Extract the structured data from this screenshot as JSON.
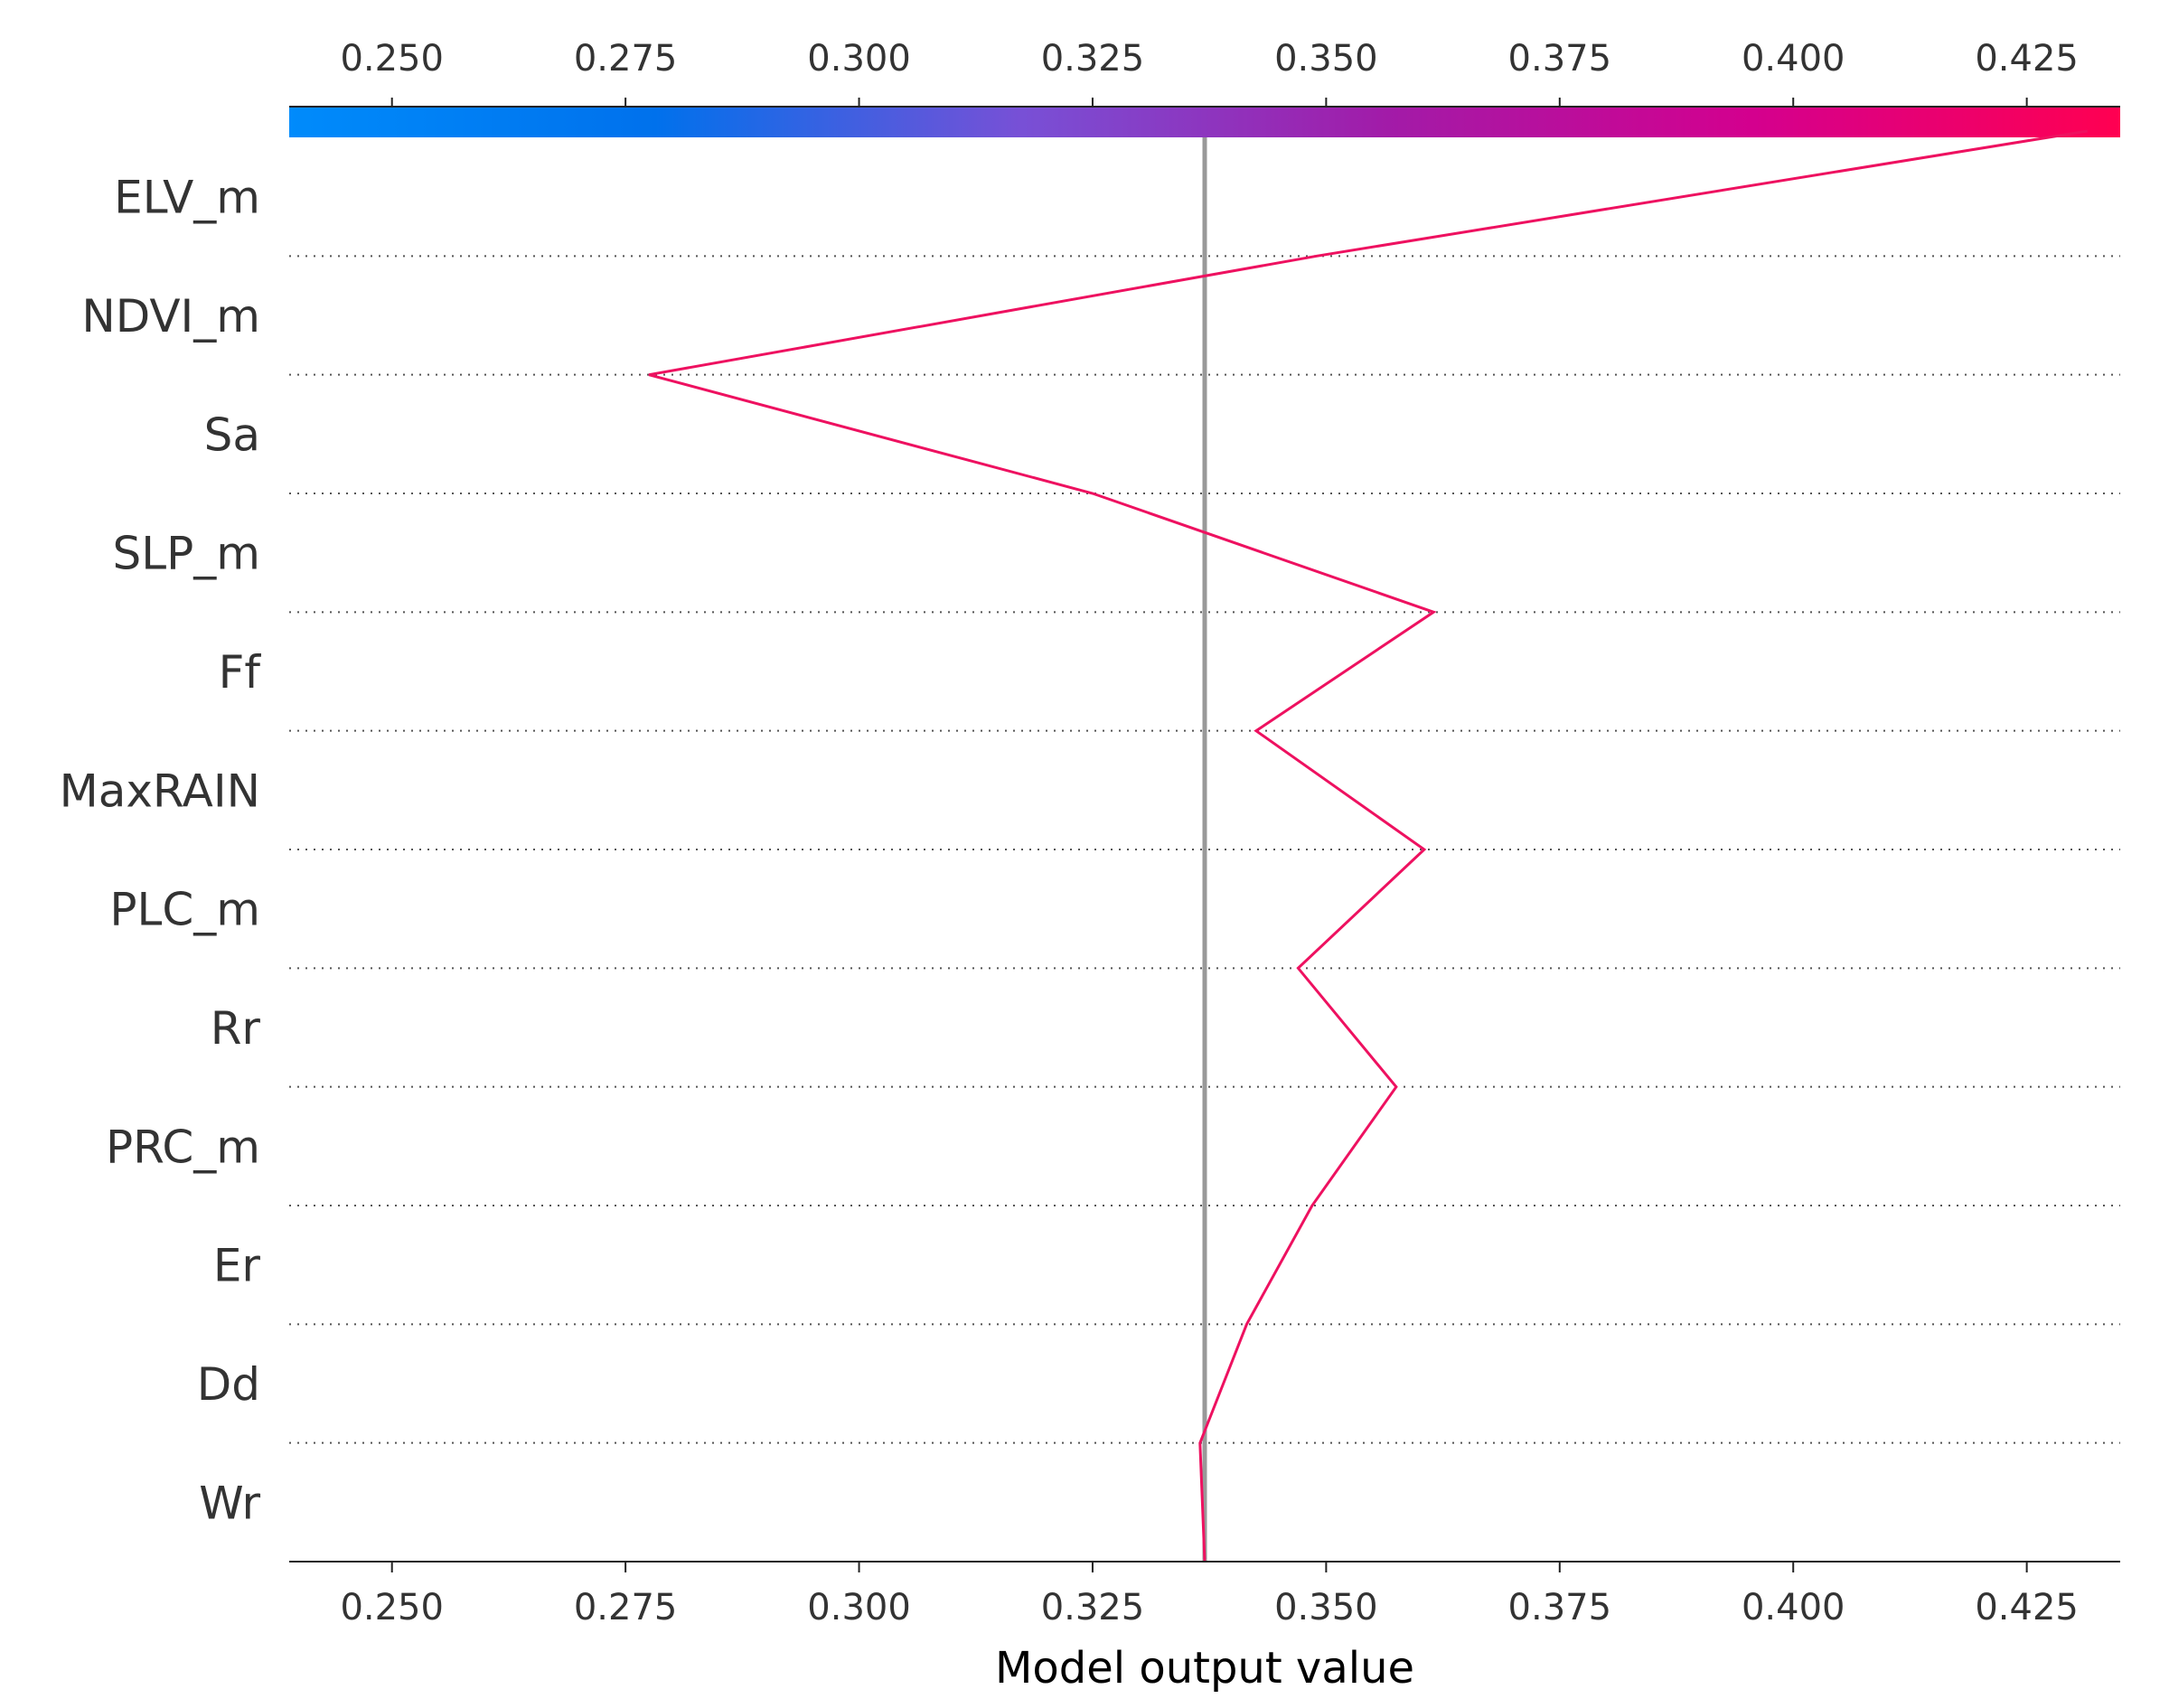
{
  "chart_data": {
    "type": "line",
    "title": "",
    "xlabel": "Model output value",
    "ylabel": "",
    "xlim": [
      0.239,
      0.435
    ],
    "x_ticks": [
      "0.250",
      "0.275",
      "0.300",
      "0.325",
      "0.350",
      "0.375",
      "0.400",
      "0.425"
    ],
    "x_tick_values": [
      0.25,
      0.275,
      0.3,
      0.325,
      0.35,
      0.375,
      0.4,
      0.425
    ],
    "base_value": 0.337,
    "features": [
      "ELV_m",
      "NDVI_m",
      "Sa",
      "SLP_m",
      "Ff",
      "MaxRAIN",
      "PLC_m",
      "Rr",
      "PRC_m",
      "Er",
      "Dd",
      "Wr"
    ],
    "series": [
      {
        "values": [
          0.4315,
          0.349,
          0.2775,
          0.325,
          0.3615,
          0.3425,
          0.3605,
          0.347,
          0.3575,
          0.3485,
          0.3415,
          0.3365,
          0.337
        ]
      }
    ],
    "colorbar": {
      "colors": [
        "#008bfb",
        "#0071ec",
        "#7850d6",
        "#a21ba8",
        "#d4008e",
        "#ff0051"
      ],
      "range": [
        0.239,
        0.435
      ]
    },
    "line_color": "#ee1160",
    "base_line_color": "#999999",
    "grid": "dotted-horizontal"
  }
}
